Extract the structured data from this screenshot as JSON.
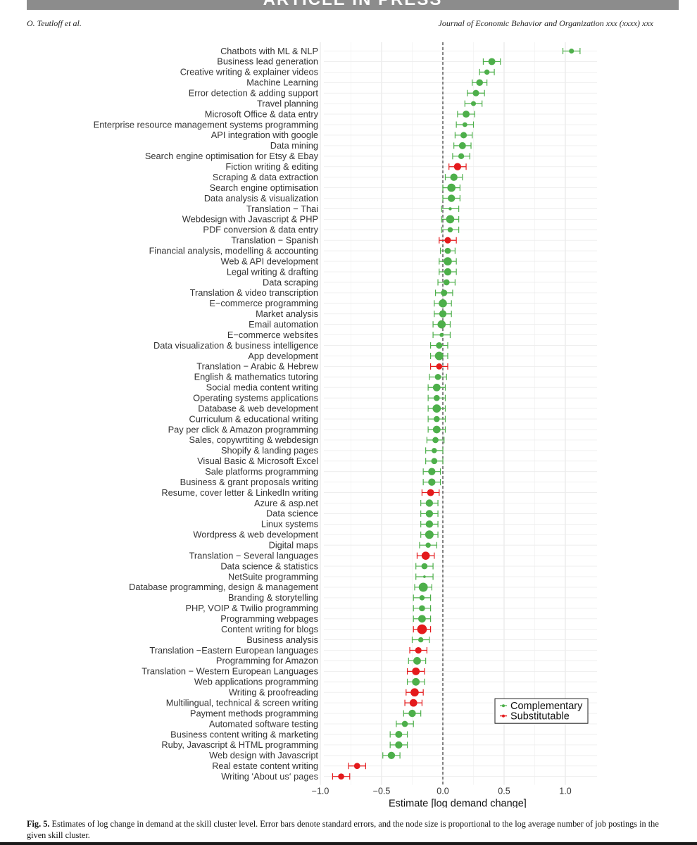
{
  "header": {
    "banner": "ARTICLE IN PRESS",
    "authors": "O. Teutloff et al.",
    "journal": "Journal of Economic Behavior and Organization xxx (xxxx) xxx"
  },
  "caption": {
    "label": "Fig. 5.",
    "text": "Estimates of log change in demand at the skill cluster level. Error bars denote standard errors, and the node size is proportional to the log average number of job postings in the given skill cluster."
  },
  "colors": {
    "complementary": "#4daf4a",
    "substitutable": "#e41a1c",
    "grid": "#ebebeb",
    "zero_line": "#333333"
  },
  "chart_data": {
    "type": "scatter",
    "title": "",
    "xlabel": "Estimate [log demand change]",
    "ylabel": "",
    "xlim": [
      -1.05,
      1.25
    ],
    "xticks": [
      -1.0,
      -0.5,
      0.0,
      0.5,
      1.0
    ],
    "xtick_labels": [
      "−1.0",
      "−0.5",
      "0.0",
      "0.5",
      "1.0"
    ],
    "grid": true,
    "reference_line": 0,
    "legend": {
      "position": "bottom-right",
      "entries": [
        {
          "label": "Complementary",
          "group": "c"
        },
        {
          "label": "Substitutable",
          "group": "s"
        }
      ]
    },
    "groups": {
      "c": "Complementary",
      "s": "Substitutable"
    },
    "points": [
      {
        "label": "Chatbots with ML & NLP",
        "estimate": 1.05,
        "se": 0.07,
        "group": "c",
        "log_postings": 2.2
      },
      {
        "label": "Business lead generation",
        "estimate": 0.4,
        "se": 0.07,
        "group": "c",
        "log_postings": 3.6
      },
      {
        "label": "Creative writing & explainer videos",
        "estimate": 0.36,
        "se": 0.06,
        "group": "c",
        "log_postings": 2.4
      },
      {
        "label": "Machine Learning",
        "estimate": 0.3,
        "se": 0.06,
        "group": "c",
        "log_postings": 3.4
      },
      {
        "label": "Error detection & adding support",
        "estimate": 0.27,
        "se": 0.07,
        "group": "c",
        "log_postings": 3.2
      },
      {
        "label": "Travel planning",
        "estimate": 0.25,
        "se": 0.07,
        "group": "c",
        "log_postings": 2.2
      },
      {
        "label": "Microsoft Office & data entry",
        "estimate": 0.19,
        "se": 0.07,
        "group": "c",
        "log_postings": 3.6
      },
      {
        "label": "Enterprise resource management systems programming",
        "estimate": 0.18,
        "se": 0.07,
        "group": "c",
        "log_postings": 2.1
      },
      {
        "label": "API integration with google",
        "estimate": 0.17,
        "se": 0.07,
        "group": "c",
        "log_postings": 3.2
      },
      {
        "label": "Data mining",
        "estimate": 0.16,
        "se": 0.07,
        "group": "c",
        "log_postings": 3.6
      },
      {
        "label": "Search engine optimisation for Etsy & Ebay",
        "estimate": 0.15,
        "se": 0.07,
        "group": "c",
        "log_postings": 2.8
      },
      {
        "label": "Fiction writing & editing",
        "estimate": 0.12,
        "se": 0.07,
        "group": "s",
        "log_postings": 3.8
      },
      {
        "label": "Scraping & data extraction",
        "estimate": 0.09,
        "se": 0.07,
        "group": "c",
        "log_postings": 3.8
      },
      {
        "label": "Search engine optimisation",
        "estimate": 0.07,
        "se": 0.07,
        "group": "c",
        "log_postings": 4.4
      },
      {
        "label": "Data analysis & visualization",
        "estimate": 0.07,
        "se": 0.07,
        "group": "c",
        "log_postings": 3.8
      },
      {
        "label": "Translation − Thai",
        "estimate": 0.06,
        "se": 0.07,
        "group": "c",
        "log_postings": 1.0
      },
      {
        "label": "Webdesign with Javascript & PHP",
        "estimate": 0.06,
        "se": 0.07,
        "group": "c",
        "log_postings": 4.4
      },
      {
        "label": "PDF conversion & data entry",
        "estimate": 0.06,
        "se": 0.07,
        "group": "c",
        "log_postings": 2.4
      },
      {
        "label": "Translation − Spanish",
        "estimate": 0.04,
        "se": 0.07,
        "group": "s",
        "log_postings": 3.2
      },
      {
        "label": "Financial analysis, modelling & accounting",
        "estimate": 0.04,
        "se": 0.06,
        "group": "c",
        "log_postings": 3.0
      },
      {
        "label": "Web & API development",
        "estimate": 0.04,
        "se": 0.07,
        "group": "c",
        "log_postings": 4.4
      },
      {
        "label": "Legal writing & drafting",
        "estimate": 0.04,
        "se": 0.07,
        "group": "c",
        "log_postings": 3.8
      },
      {
        "label": "Data scraping",
        "estimate": 0.03,
        "se": 0.07,
        "group": "c",
        "log_postings": 3.0
      },
      {
        "label": "Translation & video transcription",
        "estimate": 0.01,
        "se": 0.07,
        "group": "c",
        "log_postings": 3.2
      },
      {
        "label": "E−commerce programming",
        "estimate": 0.0,
        "se": 0.07,
        "group": "c",
        "log_postings": 4.4
      },
      {
        "label": "Market analysis",
        "estimate": 0.0,
        "se": 0.07,
        "group": "c",
        "log_postings": 3.8
      },
      {
        "label": "Email automation",
        "estimate": -0.01,
        "se": 0.07,
        "group": "c",
        "log_postings": 4.4
      },
      {
        "label": "E−commerce websites",
        "estimate": -0.01,
        "se": 0.07,
        "group": "c",
        "log_postings": 1.6
      },
      {
        "label": "Data visualization & business intelligence",
        "estimate": -0.03,
        "se": 0.07,
        "group": "c",
        "log_postings": 3.2
      },
      {
        "label": "App development",
        "estimate": -0.03,
        "se": 0.07,
        "group": "c",
        "log_postings": 4.6
      },
      {
        "label": "Translation − Arabic & Hebrew",
        "estimate": -0.03,
        "se": 0.07,
        "group": "s",
        "log_postings": 3.0
      },
      {
        "label": "English & mathematics tutoring",
        "estimate": -0.04,
        "se": 0.07,
        "group": "c",
        "log_postings": 3.0
      },
      {
        "label": "Social media content writing",
        "estimate": -0.05,
        "se": 0.07,
        "group": "c",
        "log_postings": 4.0
      },
      {
        "label": "Operating systems applications",
        "estimate": -0.05,
        "se": 0.07,
        "group": "c",
        "log_postings": 3.0
      },
      {
        "label": "Database & web development",
        "estimate": -0.05,
        "se": 0.07,
        "group": "c",
        "log_postings": 4.4
      },
      {
        "label": "Curriculum & educational writing",
        "estimate": -0.05,
        "se": 0.07,
        "group": "c",
        "log_postings": 3.0
      },
      {
        "label": "Pay per click & Amazon programming",
        "estimate": -0.05,
        "se": 0.07,
        "group": "c",
        "log_postings": 4.0
      },
      {
        "label": "Sales, copywrtiting & webdesign",
        "estimate": -0.06,
        "se": 0.07,
        "group": "c",
        "log_postings": 3.0
      },
      {
        "label": "Shopify & landing pages",
        "estimate": -0.07,
        "se": 0.07,
        "group": "c",
        "log_postings": 2.4
      },
      {
        "label": "Visual Basic & Microsoft Excel",
        "estimate": -0.07,
        "se": 0.07,
        "group": "c",
        "log_postings": 3.0
      },
      {
        "label": "Sale platforms programming",
        "estimate": -0.09,
        "se": 0.07,
        "group": "c",
        "log_postings": 3.8
      },
      {
        "label": "Business & grant proposals writing",
        "estimate": -0.09,
        "se": 0.07,
        "group": "c",
        "log_postings": 3.8
      },
      {
        "label": "Resume, cover letter & LinkedIn writing",
        "estimate": -0.1,
        "se": 0.07,
        "group": "s",
        "log_postings": 3.6
      },
      {
        "label": "Azure & asp.net",
        "estimate": -0.11,
        "se": 0.07,
        "group": "c",
        "log_postings": 3.8
      },
      {
        "label": "Data science",
        "estimate": -0.11,
        "se": 0.07,
        "group": "c",
        "log_postings": 3.8
      },
      {
        "label": "Linux systems",
        "estimate": -0.11,
        "se": 0.07,
        "group": "c",
        "log_postings": 3.8
      },
      {
        "label": "Wordpress & web development",
        "estimate": -0.11,
        "se": 0.07,
        "group": "c",
        "log_postings": 4.6
      },
      {
        "label": "Digital maps",
        "estimate": -0.12,
        "se": 0.07,
        "group": "c",
        "log_postings": 2.4
      },
      {
        "label": "Translation − Several languages",
        "estimate": -0.14,
        "se": 0.07,
        "group": "s",
        "log_postings": 4.4
      },
      {
        "label": "Data science & statistics",
        "estimate": -0.15,
        "se": 0.07,
        "group": "c",
        "log_postings": 3.0
      },
      {
        "label": "NetSuite programming",
        "estimate": -0.15,
        "se": 0.07,
        "group": "c",
        "log_postings": 0.6
      },
      {
        "label": "Database programming, design & management",
        "estimate": -0.16,
        "se": 0.07,
        "group": "c",
        "log_postings": 5.0
      },
      {
        "label": "Branding & storytelling",
        "estimate": -0.17,
        "se": 0.07,
        "group": "c",
        "log_postings": 2.4
      },
      {
        "label": "PHP, VOIP & Twilio programming",
        "estimate": -0.17,
        "se": 0.07,
        "group": "c",
        "log_postings": 3.0
      },
      {
        "label": "Programming webpages",
        "estimate": -0.17,
        "se": 0.07,
        "group": "c",
        "log_postings": 4.0
      },
      {
        "label": "Content writing for blogs",
        "estimate": -0.17,
        "se": 0.07,
        "group": "s",
        "log_postings": 5.4
      },
      {
        "label": "Business analysis",
        "estimate": -0.18,
        "se": 0.07,
        "group": "c",
        "log_postings": 2.4
      },
      {
        "label": "Translation −Eastern European languages",
        "estimate": -0.2,
        "se": 0.07,
        "group": "s",
        "log_postings": 3.2
      },
      {
        "label": "Programming for Amazon",
        "estimate": -0.21,
        "se": 0.07,
        "group": "c",
        "log_postings": 4.0
      },
      {
        "label": "Translation − Western European Languages",
        "estimate": -0.22,
        "se": 0.07,
        "group": "s",
        "log_postings": 4.0
      },
      {
        "label": "Web applications programming",
        "estimate": -0.22,
        "se": 0.07,
        "group": "c",
        "log_postings": 4.0
      },
      {
        "label": "Writing & proofreading",
        "estimate": -0.23,
        "se": 0.07,
        "group": "s",
        "log_postings": 4.4
      },
      {
        "label": "Multilingual, technical & screen writing",
        "estimate": -0.24,
        "se": 0.07,
        "group": "s",
        "log_postings": 4.0
      },
      {
        "label": "Payment methods programming",
        "estimate": -0.25,
        "se": 0.07,
        "group": "c",
        "log_postings": 3.8
      },
      {
        "label": "Automated software testing",
        "estimate": -0.31,
        "se": 0.07,
        "group": "c",
        "log_postings": 3.0
      },
      {
        "label": "Business content writing & marketing",
        "estimate": -0.36,
        "se": 0.07,
        "group": "c",
        "log_postings": 3.6
      },
      {
        "label": "Ruby, Javascript & HTML programming",
        "estimate": -0.36,
        "se": 0.07,
        "group": "c",
        "log_postings": 3.8
      },
      {
        "label": "Web design with Javascript",
        "estimate": -0.42,
        "se": 0.07,
        "group": "c",
        "log_postings": 3.8
      },
      {
        "label": "Real estate content writing",
        "estimate": -0.7,
        "se": 0.07,
        "group": "s",
        "log_postings": 3.0
      },
      {
        "label": "Writing ‘About us‘ pages",
        "estimate": -0.83,
        "se": 0.07,
        "group": "s",
        "log_postings": 3.0
      }
    ]
  }
}
